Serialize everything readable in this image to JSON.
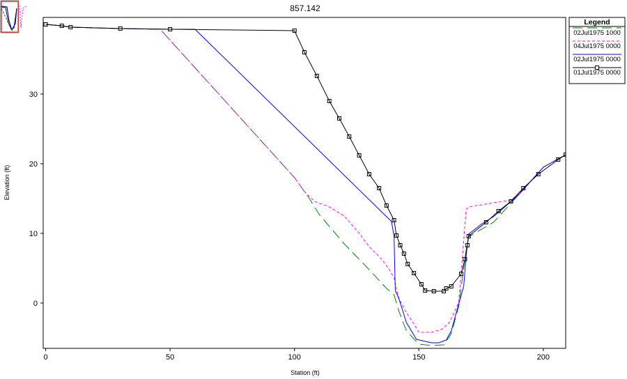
{
  "chart_data": {
    "type": "line",
    "title": "857.142",
    "xlabel": "Station (ft)",
    "ylabel": "Elevation (ft)",
    "xlim": [
      -1,
      209
    ],
    "ylim": [
      -6.5,
      41
    ],
    "xticks": [
      0,
      50,
      100,
      150,
      200
    ],
    "yticks": [
      0,
      10,
      20,
      30
    ],
    "grid": false,
    "legend_position": "right",
    "legend_title": "Legend",
    "series": [
      {
        "name": "02Jul1975 1000",
        "color": "#008000",
        "dash": "long-dash",
        "marker": "none",
        "x": [
          0,
          6,
          10,
          30,
          46,
          100,
          106,
          110,
          120,
          130,
          137,
          140,
          142,
          145,
          150,
          155,
          160,
          163,
          166,
          169,
          170,
          180,
          190,
          200,
          209
        ],
        "y": [
          40,
          39.8,
          39.6,
          39.4,
          39.3,
          18,
          15,
          12.7,
          8.5,
          4.8,
          2.1,
          1.2,
          -1.2,
          -4,
          -5.9,
          -6.1,
          -6,
          -4.4,
          -0.5,
          7.6,
          9.5,
          11.6,
          15.5,
          19.5,
          21.3
        ]
      },
      {
        "name": "04Jul1975 0000",
        "color": "#ff00ff",
        "dash": "short-dash",
        "marker": "none",
        "x": [
          0,
          6,
          10,
          30,
          46,
          100,
          104,
          108,
          114,
          120,
          126,
          130,
          135,
          138,
          140,
          142,
          145,
          148,
          150,
          155,
          159,
          162,
          164,
          166,
          168,
          169,
          170,
          180,
          187,
          190,
          200,
          209
        ],
        "y": [
          40,
          39.8,
          39.6,
          39.4,
          39.3,
          18,
          16,
          14.6,
          13.8,
          12.5,
          10,
          8.1,
          6.3,
          4.9,
          3.6,
          0.6,
          -1.4,
          -3,
          -4.2,
          -4.2,
          -3.8,
          -2.9,
          -1.5,
          0.1,
          8.9,
          13.4,
          13.8,
          14.4,
          14.8,
          15.6,
          19.5,
          21.3
        ]
      },
      {
        "name": "02Jul1975 0000",
        "color": "#0000ff",
        "dash": "solid",
        "marker": "none",
        "x": [
          0,
          6,
          10,
          30,
          50,
          60,
          139,
          140,
          140.5,
          142,
          145,
          149,
          155,
          158,
          161,
          163,
          165,
          168,
          169,
          170,
          175,
          180,
          190,
          200,
          209
        ],
        "y": [
          40,
          39.8,
          39.6,
          39.4,
          39.3,
          39.3,
          11.7,
          9.6,
          1.8,
          0.6,
          -2.8,
          -5.2,
          -5.7,
          -5.7,
          -5.3,
          -4,
          -1.4,
          2.4,
          6.8,
          9.9,
          11.3,
          12.4,
          15.5,
          19.5,
          21.3
        ]
      },
      {
        "name": "01Jul1975 0000",
        "color": "#000000",
        "dash": "solid",
        "marker": "square",
        "x": [
          0,
          6.5,
          10,
          30,
          50,
          100,
          104,
          109,
          114,
          118,
          122,
          126,
          130,
          134,
          137,
          140,
          141,
          142.5,
          144,
          145.5,
          148,
          151,
          152.5,
          156,
          160,
          161,
          163,
          167,
          168.5,
          169.5,
          170,
          177,
          182,
          187,
          192,
          198,
          206,
          209
        ],
        "y": [
          40,
          39.8,
          39.6,
          39.4,
          39.3,
          39.1,
          36,
          32.6,
          29,
          26.5,
          23.9,
          21.2,
          18.5,
          16.5,
          14,
          11.9,
          9.7,
          8.3,
          7.1,
          5.6,
          4.3,
          2.7,
          1.8,
          1.7,
          1.7,
          2.1,
          2.4,
          4.2,
          6.3,
          8.3,
          9.6,
          11.6,
          13.2,
          14.6,
          16.5,
          18.5,
          20.6,
          21.3
        ]
      }
    ]
  }
}
